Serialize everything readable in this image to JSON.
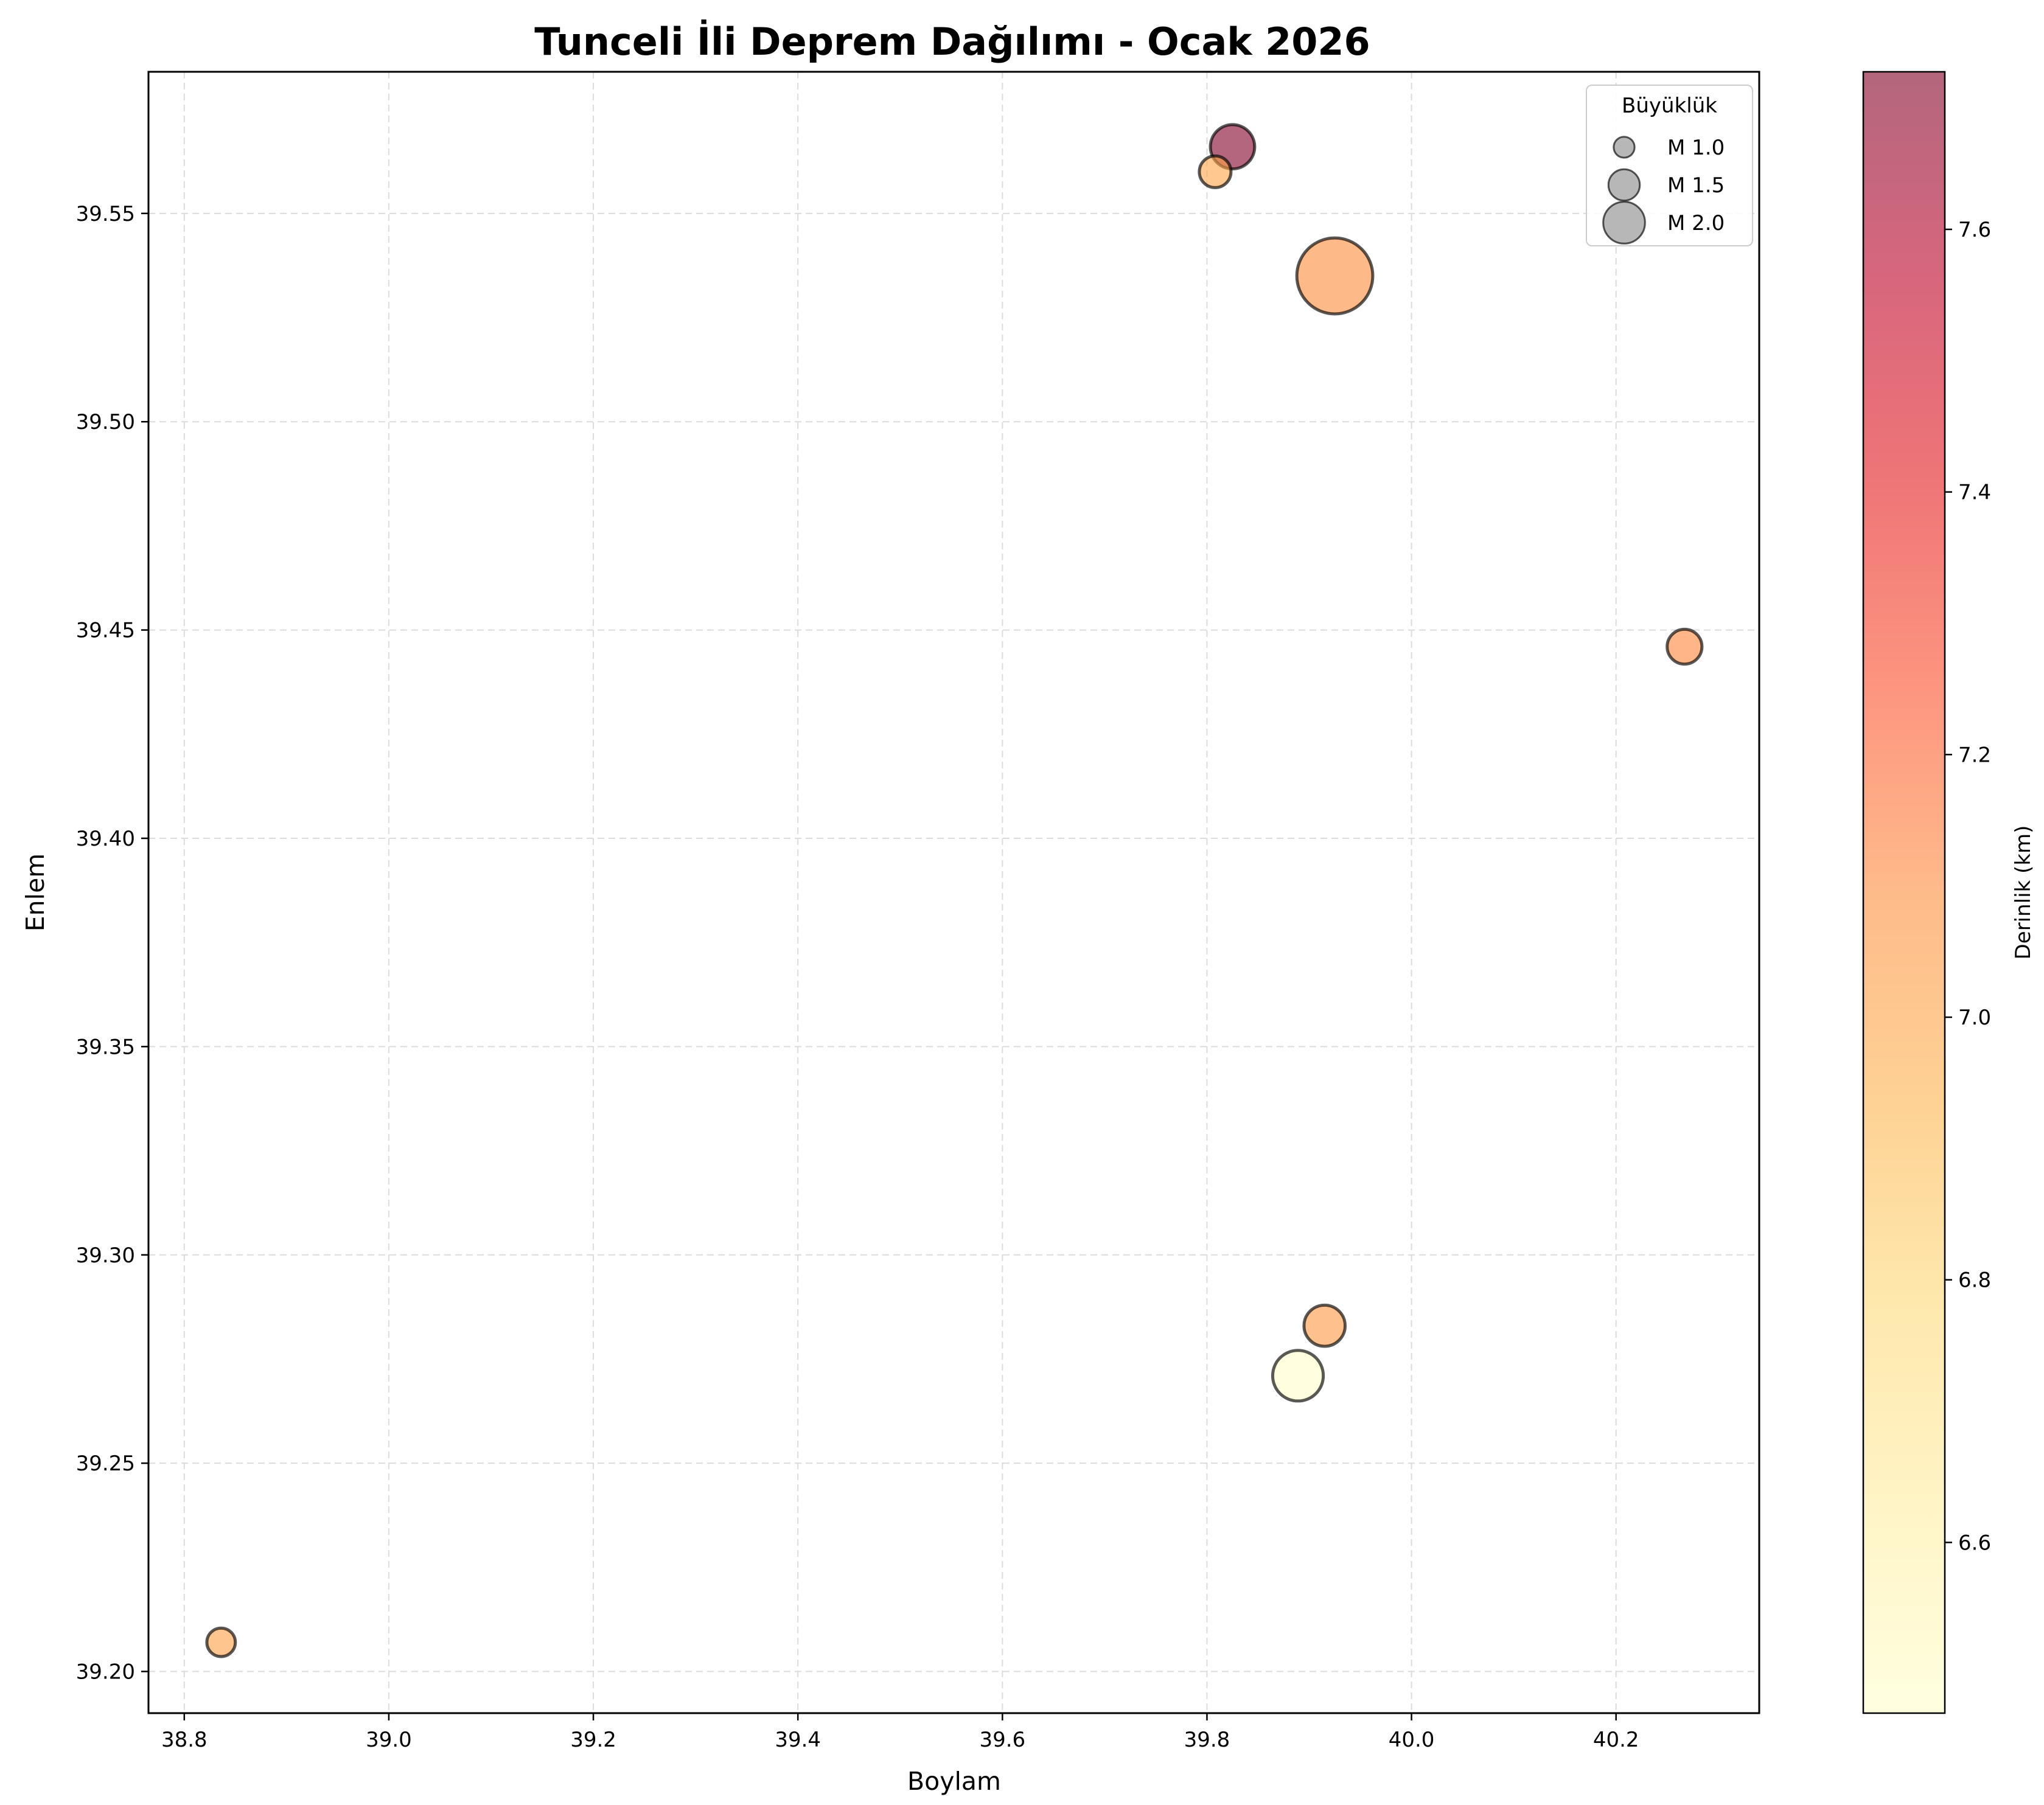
{
  "chart_data": {
    "type": "scatter",
    "title": "Tunceli İli Deprem Dağılımı - Ocak 2026",
    "xlabel": "Boylam",
    "ylabel": "Enlem",
    "xlim": [
      38.765,
      40.34
    ],
    "ylim": [
      39.19,
      39.584
    ],
    "xticks": [
      "38.8",
      "39.0",
      "39.2",
      "39.4",
      "39.6",
      "39.8",
      "40.0",
      "40.2"
    ],
    "yticks": [
      "39.20",
      "39.25",
      "39.30",
      "39.35",
      "39.40",
      "39.45",
      "39.50",
      "39.55"
    ],
    "grid": true,
    "points": [
      {
        "lon": 39.825,
        "lat": 39.566,
        "mag": 1.4,
        "depth": 7.72
      },
      {
        "lon": 39.808,
        "lat": 39.56,
        "mag": 1.0,
        "depth": 7.0
      },
      {
        "lon": 39.925,
        "lat": 39.535,
        "mag": 2.4,
        "depth": 7.1
      },
      {
        "lon": 40.267,
        "lat": 39.446,
        "mag": 1.1,
        "depth": 7.12
      },
      {
        "lon": 39.915,
        "lat": 39.283,
        "mag": 1.3,
        "depth": 7.05
      },
      {
        "lon": 39.889,
        "lat": 39.271,
        "mag": 1.6,
        "depth": 6.47
      },
      {
        "lon": 38.836,
        "lat": 39.207,
        "mag": 0.9,
        "depth": 7.02
      }
    ],
    "legend": {
      "title": "Büyüklük",
      "placement": "top-right",
      "entries": [
        {
          "label": "M 1.0",
          "mag": 1.0
        },
        {
          "label": "M 1.5",
          "mag": 1.5
        },
        {
          "label": "M 2.0",
          "mag": 2.0
        }
      ]
    },
    "colorbar": {
      "label": "Derinlik (km)",
      "range": [
        6.47,
        7.72
      ],
      "ticks": [
        "6.6",
        "6.8",
        "7.0",
        "7.2",
        "7.4",
        "7.6"
      ],
      "colormap": "YlOrRd",
      "colors": [
        "#ffffcc",
        "#ffeda0",
        "#fed976",
        "#feb24c",
        "#fd8d3c",
        "#fc4e2a",
        "#e31a1c",
        "#bd0026",
        "#800026"
      ]
    }
  }
}
